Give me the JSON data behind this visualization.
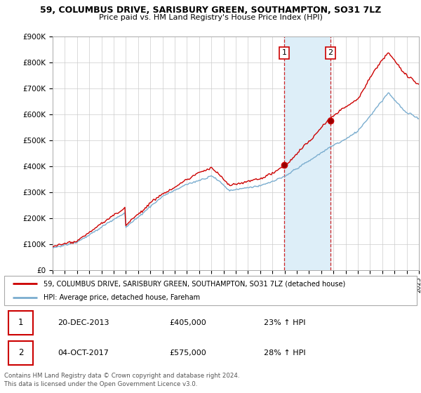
{
  "title": "59, COLUMBUS DRIVE, SARISBURY GREEN, SOUTHAMPTON, SO31 7LZ",
  "subtitle": "Price paid vs. HM Land Registry's House Price Index (HPI)",
  "legend_line1": "59, COLUMBUS DRIVE, SARISBURY GREEN, SOUTHAMPTON, SO31 7LZ (detached house)",
  "legend_line2": "HPI: Average price, detached house, Fareham",
  "footer1": "Contains HM Land Registry data © Crown copyright and database right 2024.",
  "footer2": "This data is licensed under the Open Government Licence v3.0.",
  "transaction1_date": "20-DEC-2013",
  "transaction1_price": "£405,000",
  "transaction1_hpi": "23% ↑ HPI",
  "transaction2_date": "04-OCT-2017",
  "transaction2_price": "£575,000",
  "transaction2_hpi": "28% ↑ HPI",
  "ytick_labels": [
    "£0",
    "£100K",
    "£200K",
    "£300K",
    "£400K",
    "£500K",
    "£600K",
    "£700K",
    "£800K",
    "£900K"
  ],
  "red_line_color": "#cc0000",
  "blue_line_color": "#7aadcf",
  "shade_color": "#ddeef8",
  "transaction1_year": 2013.97,
  "transaction2_year": 2017.75,
  "transaction1_price_val": 405000,
  "transaction2_price_val": 575000
}
